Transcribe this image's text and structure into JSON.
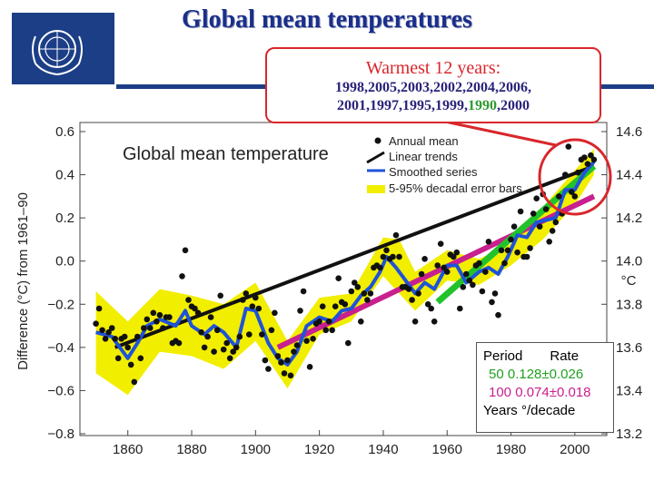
{
  "slide": {
    "title": "Global mean temperatures"
  },
  "callout": {
    "heading": "Warmest 12 years:",
    "years_line1": "1998,2005,2003,2002,2004,2006,",
    "years_line2_a": "2001,1997,1995,1999,",
    "years_line2_hl": "1990",
    "years_line2_b": ",2000"
  },
  "rate_box": {
    "header_period": "Period",
    "header_rate": "Rate",
    "row1": "50   0.128±0.026",
    "row2": "100  0.074±0.018",
    "units": "Years  °/decade"
  },
  "colors": {
    "title": "#1a2f8c",
    "callout_border": "#d9262b",
    "smoothed": "#1f53d8",
    "error_band": "#f2ee00",
    "trend_50": "#22c22a",
    "trend_100": "#c8208f",
    "trend_150": "#111111",
    "points": "#111111"
  },
  "chart_data": {
    "type": "line",
    "title": "Global mean temperature",
    "ylabel": "Difference (°C) from 1961–90",
    "ylabel_right": "°C",
    "xlim": [
      1845,
      2010
    ],
    "ylim": [
      -0.8,
      0.6
    ],
    "right_ylim": [
      13.2,
      14.6
    ],
    "x_ticks": [
      1860,
      1880,
      1900,
      1920,
      1940,
      1960,
      1980,
      2000
    ],
    "y_ticks": [
      0.6,
      0.4,
      0.2,
      0.0,
      -0.2,
      -0.4,
      -0.6,
      -0.8
    ],
    "y_tick_labels": [
      "0.6",
      "0.4",
      "0.2",
      "0.0",
      "−0.2",
      "−0.4",
      "−0.6",
      "−0.8"
    ],
    "right_ticks": [
      14.6,
      14.4,
      14.2,
      14.0,
      13.8,
      13.6,
      13.4,
      13.2
    ],
    "right_tick_labels": [
      "14.6",
      "14.4",
      "14.2",
      "14.0",
      "13.8",
      "13.6",
      "13.4",
      "13.2"
    ],
    "legend": [
      "Annual mean",
      "Linear trends",
      "Smoothed series",
      "5-95% decadal error bars"
    ],
    "grid": false,
    "legend_position": "top-right",
    "series": [
      {
        "name": "Annual mean",
        "kind": "scatter",
        "x": [
          1850,
          1851,
          1852,
          1853,
          1854,
          1855,
          1856,
          1857,
          1858,
          1859,
          1860,
          1861,
          1862,
          1863,
          1864,
          1865,
          1866,
          1867,
          1868,
          1869,
          1870,
          1871,
          1872,
          1873,
          1874,
          1875,
          1876,
          1877,
          1878,
          1879,
          1880,
          1881,
          1882,
          1883,
          1884,
          1885,
          1886,
          1887,
          1888,
          1889,
          1890,
          1891,
          1892,
          1893,
          1894,
          1895,
          1896,
          1897,
          1898,
          1899,
          1900,
          1901,
          1902,
          1903,
          1904,
          1905,
          1906,
          1907,
          1908,
          1909,
          1910,
          1911,
          1912,
          1913,
          1914,
          1915,
          1916,
          1917,
          1918,
          1919,
          1920,
          1921,
          1922,
          1923,
          1924,
          1925,
          1926,
          1927,
          1928,
          1929,
          1930,
          1931,
          1932,
          1933,
          1934,
          1935,
          1936,
          1937,
          1938,
          1939,
          1940,
          1941,
          1942,
          1943,
          1944,
          1945,
          1946,
          1947,
          1948,
          1949,
          1950,
          1951,
          1952,
          1953,
          1954,
          1955,
          1956,
          1957,
          1958,
          1959,
          1960,
          1961,
          1962,
          1963,
          1964,
          1965,
          1966,
          1967,
          1968,
          1969,
          1970,
          1971,
          1972,
          1973,
          1974,
          1975,
          1976,
          1977,
          1978,
          1979,
          1980,
          1981,
          1982,
          1983,
          1984,
          1985,
          1986,
          1987,
          1988,
          1989,
          1990,
          1991,
          1992,
          1993,
          1994,
          1995,
          1996,
          1997,
          1998,
          1999,
          2000,
          2001,
          2002,
          2003,
          2004,
          2005,
          2006
        ],
        "y": [
          -0.29,
          -0.22,
          -0.32,
          -0.36,
          -0.33,
          -0.31,
          -0.36,
          -0.45,
          -0.36,
          -0.35,
          -0.4,
          -0.48,
          -0.56,
          -0.35,
          -0.45,
          -0.31,
          -0.27,
          -0.31,
          -0.24,
          -0.28,
          -0.25,
          -0.31,
          -0.26,
          -0.26,
          -0.38,
          -0.37,
          -0.38,
          -0.07,
          0.05,
          -0.18,
          -0.21,
          -0.22,
          -0.24,
          -0.33,
          -0.4,
          -0.35,
          -0.26,
          -0.42,
          -0.32,
          -0.16,
          -0.41,
          -0.38,
          -0.45,
          -0.42,
          -0.4,
          -0.35,
          -0.18,
          -0.15,
          -0.34,
          -0.21,
          -0.17,
          -0.22,
          -0.34,
          -0.46,
          -0.5,
          -0.32,
          -0.24,
          -0.44,
          -0.47,
          -0.52,
          -0.46,
          -0.53,
          -0.42,
          -0.39,
          -0.23,
          -0.14,
          -0.37,
          -0.49,
          -0.36,
          -0.29,
          -0.28,
          -0.21,
          -0.32,
          -0.28,
          -0.32,
          -0.21,
          -0.08,
          -0.19,
          -0.2,
          -0.38,
          -0.14,
          -0.1,
          -0.12,
          -0.28,
          -0.15,
          -0.18,
          -0.15,
          -0.03,
          -0.02,
          -0.03,
          0.02,
          0.05,
          0.01,
          0.02,
          0.12,
          0.02,
          -0.12,
          -0.12,
          -0.13,
          -0.18,
          -0.28,
          -0.15,
          -0.06,
          0.01,
          -0.2,
          -0.22,
          -0.28,
          -0.02,
          0.08,
          -0.03,
          -0.05,
          0.03,
          0.02,
          0.04,
          -0.22,
          -0.12,
          -0.06,
          -0.09,
          -0.11,
          -0.02,
          -0.01,
          -0.14,
          -0.05,
          0.09,
          -0.19,
          -0.15,
          -0.25,
          0.05,
          -0.01,
          0.05,
          0.1,
          0.16,
          0.04,
          0.23,
          0.02,
          0.02,
          0.06,
          0.22,
          0.29,
          0.16,
          0.31,
          0.24,
          0.09,
          0.14,
          0.18,
          0.3,
          0.22,
          0.4,
          0.53,
          0.32,
          0.3,
          0.41,
          0.47,
          0.48,
          0.45,
          0.49,
          0.47
        ]
      },
      {
        "name": "Smoothed series",
        "kind": "line",
        "x": [
          1850,
          1855,
          1860,
          1863,
          1866,
          1870,
          1875,
          1878,
          1880,
          1884,
          1887,
          1890,
          1894,
          1897,
          1900,
          1904,
          1907,
          1910,
          1913,
          1916,
          1920,
          1924,
          1927,
          1930,
          1933,
          1936,
          1939,
          1941,
          1944,
          1947,
          1950,
          1953,
          1956,
          1960,
          1963,
          1966,
          1970,
          1973,
          1976,
          1979,
          1982,
          1985,
          1988,
          1991,
          1994,
          1997,
          2000,
          2003,
          2006
        ],
        "y": [
          -0.33,
          -0.35,
          -0.45,
          -0.38,
          -0.3,
          -0.27,
          -0.3,
          -0.23,
          -0.3,
          -0.34,
          -0.3,
          -0.33,
          -0.4,
          -0.22,
          -0.23,
          -0.38,
          -0.45,
          -0.48,
          -0.42,
          -0.3,
          -0.26,
          -0.28,
          -0.23,
          -0.22,
          -0.16,
          -0.12,
          -0.05,
          0.02,
          -0.03,
          -0.09,
          -0.15,
          -0.1,
          -0.13,
          -0.02,
          -0.02,
          -0.1,
          -0.05,
          -0.03,
          -0.06,
          0.02,
          0.12,
          0.11,
          0.18,
          0.19,
          0.2,
          0.33,
          0.33,
          0.41,
          0.46
        ]
      },
      {
        "name": "5-95% decadal error bars",
        "kind": "band",
        "x": [
          1850,
          1860,
          1870,
          1880,
          1890,
          1900,
          1910,
          1920,
          1930,
          1940,
          1945,
          1950,
          1960,
          1970,
          1980,
          1990,
          2000,
          2006
        ],
        "lower": [
          -0.52,
          -0.62,
          -0.42,
          -0.44,
          -0.5,
          -0.37,
          -0.59,
          -0.34,
          -0.28,
          -0.07,
          -0.15,
          -0.23,
          -0.09,
          -0.11,
          -0.02,
          0.1,
          0.26,
          0.4
        ],
        "upper": [
          -0.14,
          -0.28,
          -0.13,
          -0.16,
          -0.2,
          -0.1,
          -0.37,
          -0.17,
          -0.15,
          0.11,
          0.1,
          -0.05,
          0.05,
          0.01,
          0.08,
          0.25,
          0.42,
          0.52
        ]
      },
      {
        "name": "Linear trend 150 years",
        "kind": "trend",
        "x": [
          1856,
          2006
        ],
        "y": [
          -0.4,
          0.44
        ]
      },
      {
        "name": "Linear trend 100 years",
        "kind": "trend",
        "x": [
          1907,
          2006
        ],
        "y": [
          -0.4,
          0.3
        ]
      },
      {
        "name": "Linear trend 50 years",
        "kind": "trend",
        "x": [
          1957,
          2006
        ],
        "y": [
          -0.19,
          0.44
        ]
      }
    ]
  }
}
